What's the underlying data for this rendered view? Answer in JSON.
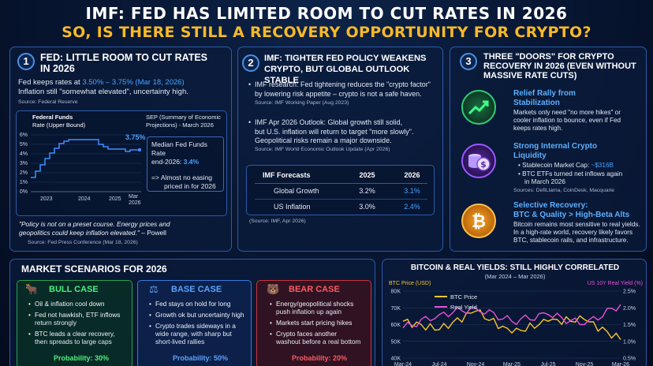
{
  "header": {
    "title": "IMF: FED HAS LIMITED ROOM TO CUT RATES IN 2026",
    "subtitle": "SO, IS THERE STILL A RECOVERY OPPORTUNITY FOR CRYPTO?"
  },
  "panel1": {
    "number": "1",
    "title_line1": "FED: LITTLE ROOM TO CUT RATES",
    "title_line2": "IN 2026",
    "text_prefix": "Fed keeps rates at ",
    "rate_range": "3.50% – 3.75%",
    "text_date": " (Mar 18, 2026)",
    "text_line2": "Inflation still \"somewhat elevated\", uncertainty high.",
    "source": "Source: Federal Reserve",
    "chart": {
      "title_line1": "Federal Funds",
      "title_line2": "Rate (Upper Bound)",
      "y_ticks": [
        "6%",
        "5%",
        "4%",
        "3%",
        "2%",
        "1%",
        "0%"
      ],
      "x_ticks": [
        "2023",
        "2024",
        "2025",
        "Mar"
      ],
      "x_tick_last2": "2026",
      "end_label": "3.75%",
      "sep_title_line1": "SEP (Summary of Economic",
      "sep_title_line2": "Projections) - March 2026",
      "median_line1": "Median Fed Funds Rate",
      "median_line2_prefix": "end-2026: ",
      "median_value": "3.4%",
      "note_line1": "=> Almost no easing",
      "note_line2": "priced in for 2026"
    },
    "quote_line1": "\"Policy is not on a preset course. Energy prices and",
    "quote_line2": "geopolitics could keep inflation elevated.\"",
    "quote_author": " – Powell",
    "quote_source": "Source: Fed Press Conference (Mar 18, 2026)"
  },
  "panel2": {
    "number": "2",
    "title_line1": "IMF: TIGHTER FED POLICY WEAKENS",
    "title_line2": "CRYPTO, BUT GLOBAL OUTLOOK STABLE",
    "bullet1_line1": "IMF research: Fed tightening reduces the \"crypto factor\"",
    "bullet1_line2": "by lowering risk appetite – crypto is not a safe haven.",
    "source1": "Source: IMF Working Paper (Aug 2023)",
    "bullet2_line1": "IMF Apr 2026 Outlook: Global growth still solid,",
    "bullet2_line2": "but U.S. inflation will return to target \"more slowly\".",
    "bullet2_line3": "Geopolitical risks remain a major downside.",
    "source2": "Source: IMF World Economic Outlook Update (Apr 2026)",
    "table": {
      "header": [
        "IMF Forecasts",
        "2025",
        "2026"
      ],
      "rows": [
        [
          "Global Growth",
          "3.2%",
          "3.1%"
        ],
        [
          "US Inflation",
          "3.0%",
          "2.4%"
        ]
      ],
      "source": "(Source: IMF, Apr 2026)"
    }
  },
  "panel3": {
    "number": "3",
    "title_line1": "THREE \"DOORS\" FOR CRYPTO",
    "title_line2": "RECOVERY IN 2026 (EVEN WITHOUT",
    "title_line3": "MASSIVE RATE CUTS)",
    "door1_head1": "Relief Rally from",
    "door1_head2": "Stabilization",
    "door1_text1": "Markets only need \"no more hikes\" or",
    "door1_text2": "cooler inflation to bounce, even if Fed",
    "door1_text3": "keeps rates high.",
    "door2_head1": "Strong Internal Crypto",
    "door2_head2": "Liquidity",
    "door2_b1_prefix": "Stablecoin Market Cap: ",
    "door2_b1_value": "~$316B",
    "door2_b2_line1": "BTC ETFs turned net inflows again",
    "door2_b2_line2": "in March 2026",
    "door2_source": "Sources: DefiLlama, CoinDesk, Macquarie",
    "door3_head1": "Selective Recovery:",
    "door3_head2": "BTC & Quality > High-Beta Alts",
    "door3_text1": "Bitcoin remains most sensitive to real yields.",
    "door3_text2": "In a high-rate world, recovery likely favors",
    "door3_text3": "BTC, stablecoin rails, and infrastructure."
  },
  "scenarios": {
    "title": "MARKET SCENARIOS FOR 2026",
    "bull": {
      "title": "BULL CASE",
      "b1": "Oil & inflation cool down",
      "b2_line1": "Fed not hawkish, ETF inflows",
      "b2_line2": "return strongly",
      "b3_line1": "BTC leads a clear recovery,",
      "b3_line2": "then spreads to large caps",
      "probability": "Probability: 30%"
    },
    "base": {
      "title": "BASE CASE",
      "b1": "Fed stays on hold for long",
      "b2": "Growth ok but uncertainty high",
      "b3_line1": "Crypto trades sideways  in a",
      "b3_line2": "wide range, with sharp but",
      "b3_line3": "short-lived rallies",
      "probability": "Probability: 50%"
    },
    "bear": {
      "title": "BEAR CASE",
      "b1_line1": "Energy/geopolitical shocks",
      "b1_line2": "push inflation up again",
      "b2": "Markets start pricing hikes",
      "b3_line1": "Crypto faces another",
      "b3_line2": "washout before a real bottom",
      "probability": "Probability: 20%"
    }
  },
  "btc_chart": {
    "title": "BITCOIN & REAL YIELDS: STILL HIGHLY CORRELATED",
    "subtitle": "(Mar 2024 – Mar 2026)",
    "left_axis_label": "BTC Price (USD)",
    "right_axis_label": "US 10Y Real Yield (%)",
    "left_ticks": [
      "80K",
      "70K",
      "60K",
      "50K",
      "40K"
    ],
    "right_ticks": [
      "2.5%",
      "2.0%",
      "1.5%",
      "1.0%",
      "0.5%"
    ],
    "x_ticks": [
      "Mar-24",
      "Jul-24",
      "Nov-24",
      "Mar-25",
      "Jul-25",
      "Nov-25",
      "Mar-26"
    ],
    "legend_btc": "BTC Price",
    "legend_yield": "Real Yield",
    "colors": {
      "btc": "#f7c531",
      "yield": "#e552d6"
    }
  },
  "chart_data": {
    "type": "line",
    "title": "BITCOIN & REAL YIELDS: STILL HIGHLY CORRELATED",
    "subtitle": "(Mar 2024 – Mar 2026)",
    "x": [
      "Mar-24",
      "Jul-24",
      "Nov-24",
      "Mar-25",
      "Jul-25",
      "Nov-25",
      "Mar-26"
    ],
    "series": [
      {
        "name": "BTC Price",
        "axis": "left",
        "values": [
          62000,
          57000,
          68000,
          55000,
          62000,
          63000,
          51000
        ]
      },
      {
        "name": "Real Yield",
        "axis": "right",
        "values": [
          1.4,
          1.8,
          2.0,
          1.6,
          1.8,
          1.5,
          2.1
        ]
      }
    ],
    "ylabel": "BTC Price (USD)",
    "ylabel_right": "US 10Y Real Yield (%)",
    "ylim": [
      40000,
      80000
    ],
    "ylim_right": [
      0.5,
      2.5
    ]
  }
}
